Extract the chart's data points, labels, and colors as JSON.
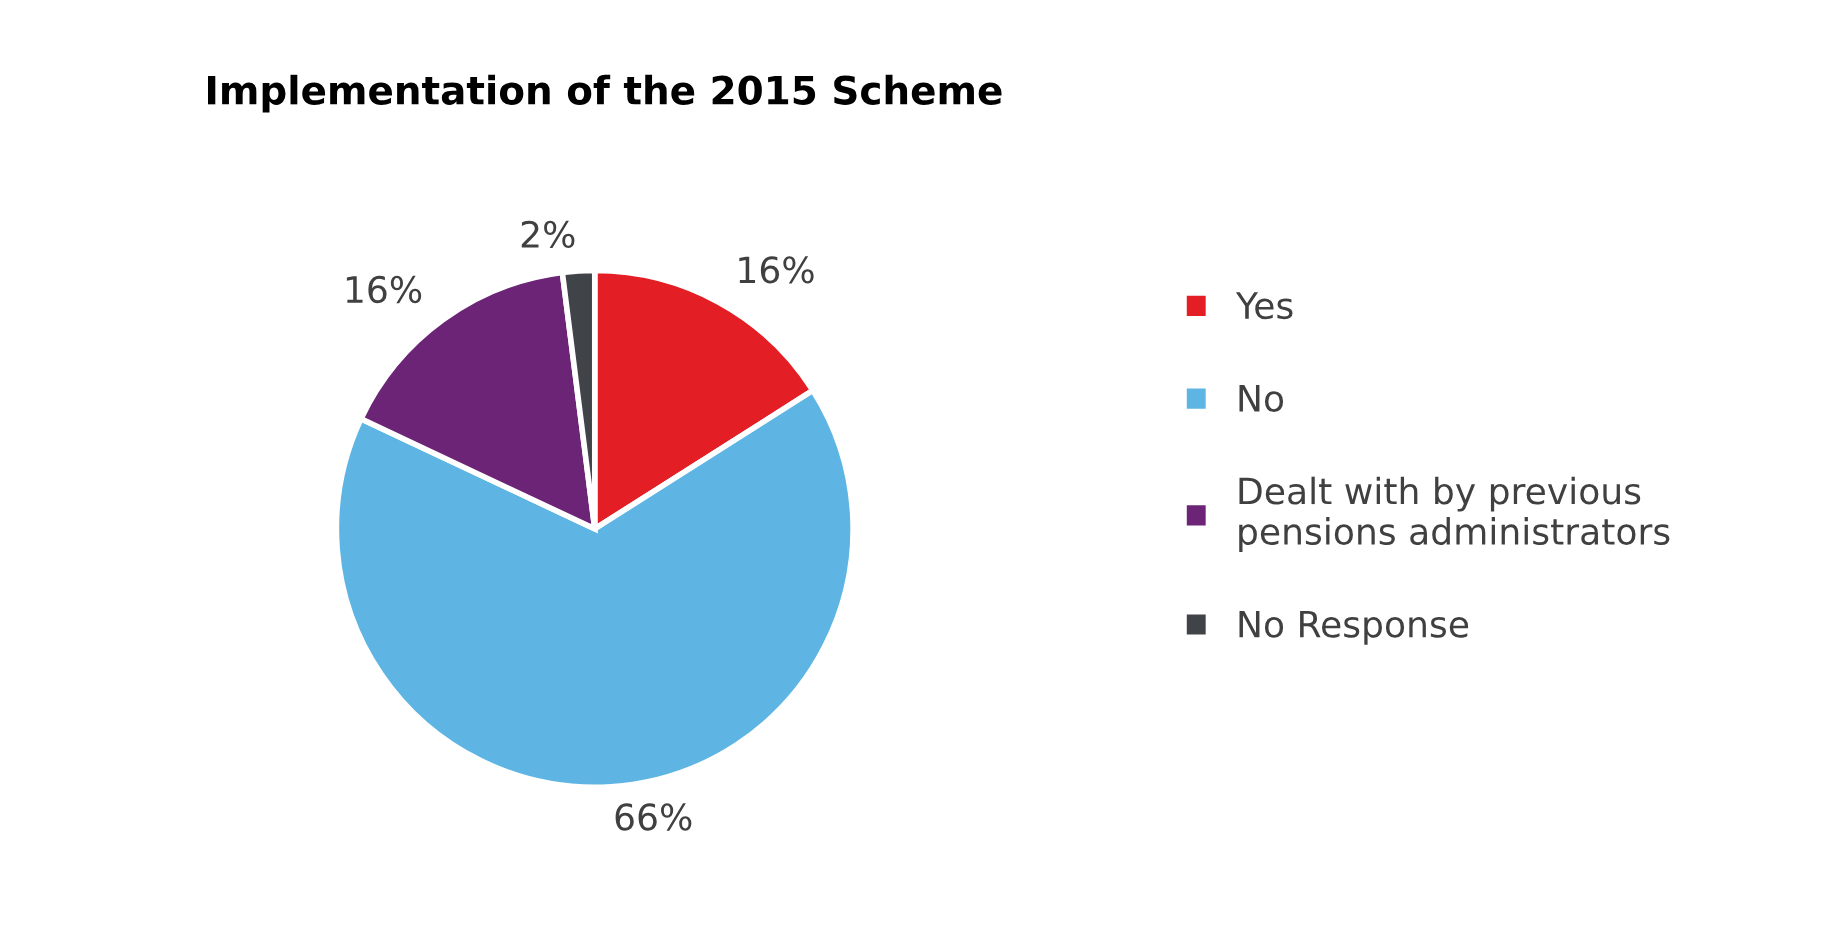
{
  "chart_data": {
    "type": "pie",
    "title": "Implementation of the 2015 Scheme",
    "categories": [
      "Yes",
      "No",
      "Dealt with by previous\npensions administrators",
      "No Response"
    ],
    "values": [
      16,
      66,
      16,
      2
    ],
    "colors": [
      "#e31e24",
      "#5eb5e3",
      "#6b2476",
      "#404347"
    ],
    "value_labels": [
      "16%",
      "66%",
      "16%",
      "2%"
    ],
    "legend": "right"
  }
}
